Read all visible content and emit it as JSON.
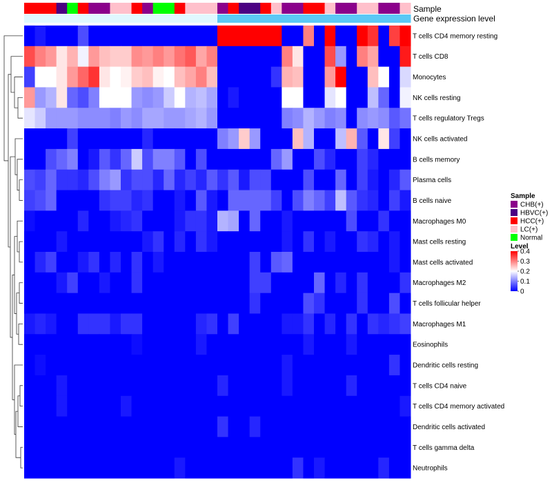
{
  "chart_data": {
    "type": "heatmap",
    "title": "",
    "annotation_tracks": [
      "Sample",
      "Gene expression level"
    ],
    "rows": [
      "T cells CD4 memory resting",
      "T cells CD8",
      "Monocytes",
      "NK cells resting",
      "T cells regulatory  Tregs",
      "NK cells activated",
      "B cells memory",
      "Plasma cells",
      "B cells naive",
      "Macrophages M0",
      "Mast cells resting",
      "Mast cells activated",
      "Macrophages M2",
      "T cells follicular helper",
      "Macrophages M1",
      "Eosinophils",
      "Dendritic cells resting",
      "T cells CD4 naive",
      "T cells CD4 memory activated",
      "Dendritic cells activated",
      "T cells gamma delta",
      "Neutrophils"
    ],
    "sample_groups": [
      "HCC(+)",
      "HCC(+)",
      "HCC(+)",
      "HBVC(+)",
      "Normal",
      "HCC(+)",
      "CHB(+)",
      "CHB(+)",
      "LC(+)",
      "LC(+)",
      "HCC(+)",
      "CHB(+)",
      "Normal",
      "Normal",
      "HCC(+)",
      "LC(+)",
      "LC(+)",
      "LC(+)",
      "CHB(+)",
      "HCC(+)",
      "HBVC(+)",
      "HBVC(+)",
      "HCC(+)",
      "LC(+)",
      "CHB(+)",
      "CHB(+)",
      "HCC(+)",
      "HCC(+)",
      "LC(+)",
      "CHB(+)",
      "CHB(+)",
      "LC(+)",
      "LC(+)",
      "CHB(+)",
      "CHB(+)",
      "LC(+)"
    ],
    "expression_level": [
      "low",
      "low",
      "low",
      "low",
      "low",
      "low",
      "low",
      "low",
      "low",
      "low",
      "low",
      "low",
      "low",
      "low",
      "low",
      "low",
      "low",
      "low",
      "high",
      "high",
      "high",
      "high",
      "high",
      "high",
      "high",
      "high",
      "high",
      "high",
      "high",
      "high",
      "high",
      "high",
      "high",
      "high",
      "high",
      "high"
    ],
    "values": [
      [
        0.0,
        0.02,
        0.0,
        0.0,
        0.0,
        0.06,
        0.0,
        0.0,
        0.0,
        0.0,
        0.0,
        0.0,
        0.0,
        0.0,
        0.0,
        0.0,
        0.0,
        0.0,
        0.4,
        0.4,
        0.4,
        0.4,
        0.4,
        0.4,
        0.0,
        0.0,
        0.3,
        0.0,
        0.4,
        0.0,
        0.0,
        0.4,
        0.36,
        0.0,
        0.35,
        0.4
      ],
      [
        0.34,
        0.3,
        0.28,
        0.22,
        0.26,
        0.19,
        0.28,
        0.25,
        0.24,
        0.24,
        0.29,
        0.28,
        0.3,
        0.28,
        0.31,
        0.33,
        0.27,
        0.3,
        0.0,
        0.0,
        0.0,
        0.0,
        0.0,
        0.0,
        0.3,
        0.22,
        0.0,
        0.0,
        0.34,
        0.12,
        0.0,
        0.3,
        0.27,
        0.0,
        0.0,
        0.38
      ],
      [
        0.05,
        0.2,
        0.2,
        0.22,
        0.28,
        0.32,
        0.36,
        0.22,
        0.2,
        0.21,
        0.24,
        0.25,
        0.21,
        0.2,
        0.25,
        0.27,
        0.3,
        0.25,
        0.0,
        0.0,
        0.0,
        0.0,
        0.0,
        0.04,
        0.26,
        0.25,
        0.0,
        0.0,
        0.28,
        0.4,
        0.0,
        0.0,
        0.25,
        0.2,
        0.0,
        0.17
      ],
      [
        0.28,
        0.12,
        0.14,
        0.22,
        0.08,
        0.06,
        0.1,
        0.2,
        0.2,
        0.2,
        0.12,
        0.11,
        0.12,
        0.16,
        0.2,
        0.14,
        0.15,
        0.13,
        0.0,
        0.02,
        0.0,
        0.0,
        0.0,
        0.0,
        0.2,
        0.2,
        0.0,
        0.0,
        0.18,
        0.2,
        0.0,
        0.0,
        0.15,
        0.08,
        0.0,
        0.19
      ],
      [
        0.18,
        0.16,
        0.12,
        0.12,
        0.12,
        0.11,
        0.11,
        0.11,
        0.1,
        0.12,
        0.11,
        0.13,
        0.13,
        0.12,
        0.12,
        0.13,
        0.14,
        0.12,
        0.0,
        0.0,
        0.0,
        0.0,
        0.0,
        0.0,
        0.1,
        0.11,
        0.14,
        0.12,
        0.1,
        0.11,
        0.0,
        0.11,
        0.12,
        0.11,
        0.07,
        0.09
      ],
      [
        0.0,
        0.0,
        0.0,
        0.0,
        0.05,
        0.0,
        0.0,
        0.0,
        0.0,
        0.0,
        0.0,
        0.03,
        0.0,
        0.0,
        0.0,
        0.0,
        0.0,
        0.0,
        0.1,
        0.12,
        0.24,
        0.12,
        0.0,
        0.0,
        0.0,
        0.25,
        0.14,
        0.0,
        0.0,
        0.15,
        0.26,
        0.07,
        0.0,
        0.22,
        0.05,
        0.0
      ],
      [
        0.0,
        0.0,
        0.06,
        0.08,
        0.1,
        0.0,
        0.02,
        0.07,
        0.04,
        0.08,
        0.16,
        0.06,
        0.1,
        0.1,
        0.07,
        0.0,
        0.06,
        0.0,
        0.0,
        0.0,
        0.0,
        0.0,
        0.0,
        0.08,
        0.12,
        0.0,
        0.0,
        0.06,
        0.03,
        0.0,
        0.0,
        0.05,
        0.03,
        0.0,
        0.0,
        0.0
      ],
      [
        0.06,
        0.05,
        0.08,
        0.04,
        0.04,
        0.03,
        0.06,
        0.1,
        0.12,
        0.04,
        0.06,
        0.06,
        0.03,
        0.08,
        0.03,
        0.05,
        0.03,
        0.07,
        0.04,
        0.07,
        0.02,
        0.06,
        0.06,
        0.0,
        0.0,
        0.0,
        0.06,
        0.0,
        0.0,
        0.08,
        0.0,
        0.05,
        0.02,
        0.0,
        0.03,
        0.07
      ],
      [
        0.05,
        0.06,
        0.08,
        0.0,
        0.0,
        0.0,
        0.0,
        0.04,
        0.05,
        0.05,
        0.03,
        0.04,
        0.0,
        0.0,
        0.02,
        0.0,
        0.07,
        0.02,
        0.0,
        0.08,
        0.08,
        0.08,
        0.08,
        0.05,
        0.0,
        0.06,
        0.1,
        0.08,
        0.05,
        0.15,
        0.07,
        0.04,
        0.03,
        0.0,
        0.05,
        0.02
      ],
      [
        0.01,
        0.0,
        0.0,
        0.0,
        0.0,
        0.03,
        0.0,
        0.0,
        0.02,
        0.03,
        0.04,
        0.0,
        0.0,
        0.0,
        0.02,
        0.04,
        0.04,
        0.02,
        0.14,
        0.13,
        0.0,
        0.08,
        0.0,
        0.0,
        0.02,
        0.0,
        0.0,
        0.0,
        0.0,
        0.0,
        0.06,
        0.0,
        0.0,
        0.04,
        0.0,
        0.0
      ],
      [
        0.0,
        0.0,
        0.0,
        0.02,
        0.0,
        0.0,
        0.0,
        0.0,
        0.0,
        0.0,
        0.0,
        0.02,
        0.04,
        0.0,
        0.03,
        0.0,
        0.04,
        0.02,
        0.0,
        0.0,
        0.0,
        0.0,
        0.0,
        0.0,
        0.02,
        0.0,
        0.04,
        0.0,
        0.02,
        0.0,
        0.0,
        0.04,
        0.03,
        0.0,
        0.02,
        0.0
      ],
      [
        0.0,
        0.03,
        0.05,
        0.0,
        0.0,
        0.02,
        0.04,
        0.0,
        0.03,
        0.0,
        0.04,
        0.0,
        0.02,
        0.0,
        0.0,
        0.0,
        0.0,
        0.0,
        0.0,
        0.0,
        0.0,
        0.05,
        0.0,
        0.07,
        0.08,
        0.0,
        0.0,
        0.0,
        0.0,
        0.0,
        0.0,
        0.0,
        0.0,
        0.0,
        0.02,
        0.0
      ],
      [
        0.0,
        0.0,
        0.0,
        0.02,
        0.05,
        0.0,
        0.0,
        0.02,
        0.0,
        0.0,
        0.04,
        0.0,
        0.0,
        0.0,
        0.0,
        0.0,
        0.0,
        0.0,
        0.0,
        0.0,
        0.0,
        0.05,
        0.05,
        0.0,
        0.0,
        0.0,
        0.0,
        0.08,
        0.0,
        0.03,
        0.0,
        0.04,
        0.0,
        0.0,
        0.0,
        0.04
      ],
      [
        0.0,
        0.0,
        0.0,
        0.0,
        0.0,
        0.0,
        0.0,
        0.0,
        0.0,
        0.0,
        0.0,
        0.0,
        0.0,
        0.0,
        0.0,
        0.0,
        0.0,
        0.0,
        0.0,
        0.0,
        0.0,
        0.04,
        0.0,
        0.0,
        0.0,
        0.0,
        0.06,
        0.04,
        0.0,
        0.0,
        0.0,
        0.04,
        0.0,
        0.0,
        0.06,
        0.0
      ],
      [
        0.02,
        0.03,
        0.02,
        0.0,
        0.0,
        0.04,
        0.04,
        0.04,
        0.02,
        0.04,
        0.04,
        0.0,
        0.0,
        0.0,
        0.0,
        0.0,
        0.03,
        0.04,
        0.0,
        0.05,
        0.0,
        0.0,
        0.0,
        0.0,
        0.02,
        0.02,
        0.04,
        0.0,
        0.03,
        0.0,
        0.04,
        0.0,
        0.04,
        0.03,
        0.04,
        0.05
      ],
      [
        0.0,
        0.0,
        0.0,
        0.0,
        0.0,
        0.0,
        0.0,
        0.0,
        0.0,
        0.0,
        0.01,
        0.0,
        0.0,
        0.0,
        0.0,
        0.0,
        0.02,
        0.0,
        0.0,
        0.0,
        0.0,
        0.0,
        0.0,
        0.0,
        0.0,
        0.0,
        0.02,
        0.0,
        0.0,
        0.0,
        0.02,
        0.0,
        0.0,
        0.0,
        0.0,
        0.0
      ],
      [
        0.0,
        0.01,
        0.0,
        0.0,
        0.0,
        0.0,
        0.0,
        0.0,
        0.0,
        0.0,
        0.0,
        0.0,
        0.0,
        0.0,
        0.0,
        0.0,
        0.0,
        0.0,
        0.0,
        0.0,
        0.0,
        0.0,
        0.0,
        0.0,
        0.02,
        0.0,
        0.0,
        0.0,
        0.0,
        0.0,
        0.0,
        0.0,
        0.0,
        0.0,
        0.04,
        0.0
      ],
      [
        0.0,
        0.0,
        0.0,
        0.02,
        0.0,
        0.0,
        0.0,
        0.0,
        0.0,
        0.0,
        0.0,
        0.0,
        0.0,
        0.0,
        0.0,
        0.0,
        0.0,
        0.0,
        0.03,
        0.0,
        0.0,
        0.0,
        0.0,
        0.0,
        0.02,
        0.0,
        0.0,
        0.0,
        0.0,
        0.0,
        0.03,
        0.0,
        0.0,
        0.0,
        0.0,
        0.0
      ],
      [
        0.0,
        0.0,
        0.0,
        0.02,
        0.0,
        0.0,
        0.0,
        0.0,
        0.0,
        0.02,
        0.0,
        0.0,
        0.0,
        0.0,
        0.0,
        0.0,
        0.0,
        0.0,
        0.0,
        0.0,
        0.0,
        0.0,
        0.0,
        0.0,
        0.0,
        0.0,
        0.0,
        0.0,
        0.0,
        0.0,
        0.0,
        0.0,
        0.0,
        0.0,
        0.0,
        0.02
      ],
      [
        0.0,
        0.0,
        0.0,
        0.0,
        0.0,
        0.0,
        0.0,
        0.0,
        0.0,
        0.0,
        0.0,
        0.0,
        0.0,
        0.0,
        0.0,
        0.0,
        0.0,
        0.0,
        0.04,
        0.0,
        0.0,
        0.03,
        0.0,
        0.0,
        0.0,
        0.0,
        0.0,
        0.0,
        0.0,
        0.0,
        0.0,
        0.0,
        0.0,
        0.0,
        0.0,
        0.0
      ],
      [
        0.0,
        0.0,
        0.0,
        0.0,
        0.0,
        0.0,
        0.0,
        0.0,
        0.0,
        0.0,
        0.0,
        0.0,
        0.0,
        0.0,
        0.0,
        0.0,
        0.0,
        0.0,
        0.0,
        0.0,
        0.0,
        0.0,
        0.0,
        0.0,
        0.0,
        0.0,
        0.0,
        0.0,
        0.0,
        0.0,
        0.0,
        0.0,
        0.0,
        0.0,
        0.0,
        0.0
      ],
      [
        0.0,
        0.0,
        0.0,
        0.0,
        0.0,
        0.0,
        0.0,
        0.0,
        0.0,
        0.0,
        0.0,
        0.0,
        0.0,
        0.0,
        0.02,
        0.0,
        0.0,
        0.0,
        0.0,
        0.0,
        0.0,
        0.0,
        0.0,
        0.0,
        0.0,
        0.04,
        0.0,
        0.02,
        0.0,
        0.0,
        0.0,
        0.0,
        0.0,
        0.03,
        0.0,
        0.0
      ]
    ],
    "color_scale": {
      "min": 0,
      "max": 0.4,
      "colors": [
        "#0000FF",
        "#FFFFFF",
        "#FF0000"
      ]
    },
    "group_colors": {
      "CHB(+)": "#8B008B",
      "HBVC(+)": "#4B0082",
      "HCC(+)": "#FF0000",
      "LC(+)": "#FFC0CB",
      "Normal": "#00FF00"
    },
    "level_colors": {
      "low": "#E0F8FF",
      "high": "#5BC8F5"
    },
    "legend": {
      "sample_title": "Sample",
      "sample_entries": [
        "CHB(+)",
        "HBVC(+)",
        "HCC(+)",
        "LC(+)",
        "Normal"
      ],
      "level_title": "Level",
      "level_ticks": [
        0.4,
        0.3,
        0.2,
        0.1,
        0
      ],
      "placement": "right"
    }
  }
}
